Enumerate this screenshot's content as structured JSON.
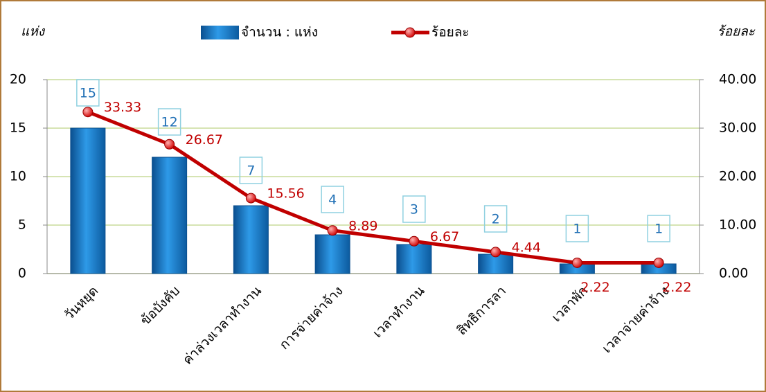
{
  "chart_data": {
    "type": "combo",
    "y_label": "แห่ง",
    "y2_label": "ร้อยละ",
    "categories": [
      "วันหยุด",
      "ข้อบังคับ",
      "ค่าล่วงเวลาทำงาน",
      "การจ่ายค่าจ้าง",
      "เวลาทำงาน",
      "สิทธิการลา",
      "เวลาพัก",
      "เวลาจ่ายค่าจ้าง"
    ],
    "series": [
      {
        "name": "จำนวน : แห่ง",
        "type": "bar",
        "color": "#1a7fd0",
        "values": [
          15,
          12,
          7,
          4,
          3,
          2,
          1,
          1
        ]
      },
      {
        "name": "ร้อยละ",
        "type": "line",
        "axis": "y2",
        "color": "#c00000",
        "values": [
          33.33,
          26.67,
          15.56,
          8.89,
          6.67,
          4.44,
          2.22,
          2.22
        ]
      }
    ],
    "ylim": [
      0,
      20
    ],
    "yticks": [
      0,
      5,
      10,
      15,
      20
    ],
    "y2lim": [
      0,
      40
    ],
    "y2ticks": [
      {
        "value": 0,
        "label": "0.00"
      },
      {
        "value": 10,
        "label": "10.00"
      },
      {
        "value": 20,
        "label": "20.00"
      },
      {
        "value": 30,
        "label": "30.00"
      },
      {
        "value": 40,
        "label": "40.00"
      }
    ],
    "grid": true
  }
}
